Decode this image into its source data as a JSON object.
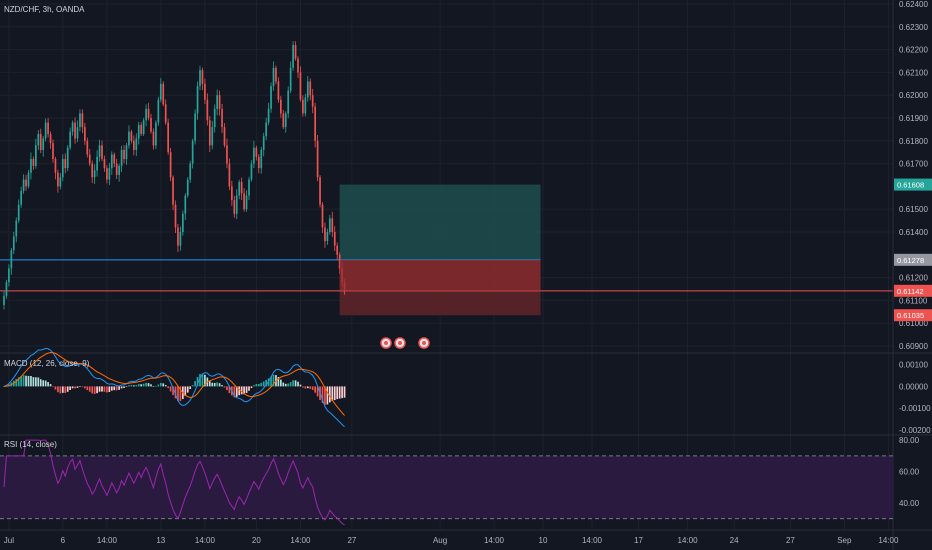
{
  "colors": {
    "background": "#131722",
    "grid": "#1e222d",
    "text": "#b2b5be",
    "up": "#26a69a",
    "down": "#ef5350",
    "macd": "#2196f3",
    "signal": "#ff6d00",
    "rsi": "#9c27b0",
    "rsi_band": "#2a1a3f",
    "target_zone": "#1e4d4d",
    "stop_zone": "#5c2328",
    "entry_line": "#2196f3",
    "current_line": "#ef5350"
  },
  "chart_data": [
    {
      "type": "candlestick",
      "title": "NZD/CHF, 3h, OANDA",
      "y_ticks": [
        "0.62400",
        "0.62300",
        "0.62200",
        "0.62100",
        "0.62000",
        "0.61900",
        "0.61800",
        "0.61700",
        "0.61500",
        "0.61400",
        "0.61200",
        "0.61100",
        "0.61000",
        "0.60900"
      ],
      "x_ticks": [
        {
          "label": "Jul",
          "bar": 2
        },
        {
          "label": "6",
          "bar": 24
        },
        {
          "label": "14:00",
          "bar": 42
        },
        {
          "label": "13",
          "bar": 64
        },
        {
          "label": "14:00",
          "bar": 82
        },
        {
          "label": "20",
          "bar": 103
        },
        {
          "label": "14:00",
          "bar": 121
        },
        {
          "label": "27",
          "bar": 142
        },
        {
          "label": "Aug",
          "bar": 178
        },
        {
          "label": "14:00",
          "bar": 200
        },
        {
          "label": "10",
          "bar": 220
        },
        {
          "label": "14:00",
          "bar": 240
        },
        {
          "label": "17",
          "bar": 259
        },
        {
          "label": "14:00",
          "bar": 279
        },
        {
          "label": "24",
          "bar": 298
        },
        {
          "label": "27",
          "bar": 321
        },
        {
          "label": "14:00",
          "bar": 361
        },
        {
          "label": "Sep",
          "bar": 343
        }
      ],
      "price_labels": [
        {
          "text": "0.61608",
          "value": 0.61608,
          "color": "#26a69a"
        },
        {
          "text": "0.61278",
          "value": 0.61278,
          "color": "#9598a1"
        },
        {
          "text": "0.61142",
          "value": 0.61142,
          "color": "#ef5350"
        },
        {
          "text": "0.61035",
          "value": 0.61035,
          "color": "#ef5350"
        }
      ],
      "position": {
        "entry": 0.61278,
        "target": 0.61608,
        "stop": 0.61035,
        "current": 0.61142,
        "start_bar": 137,
        "end_bar": 219
      },
      "close": [
        0.6112,
        0.6118,
        0.6124,
        0.6132,
        0.6138,
        0.6145,
        0.6152,
        0.6158,
        0.6163,
        0.616,
        0.6166,
        0.6172,
        0.6169,
        0.6178,
        0.6183,
        0.6176,
        0.6181,
        0.6188,
        0.6183,
        0.6179,
        0.6172,
        0.6166,
        0.616,
        0.6164,
        0.6172,
        0.6168,
        0.6177,
        0.6184,
        0.6188,
        0.6181,
        0.6186,
        0.6192,
        0.6186,
        0.618,
        0.6174,
        0.617,
        0.6164,
        0.6167,
        0.6173,
        0.6178,
        0.6172,
        0.6168,
        0.6163,
        0.6168,
        0.6174,
        0.617,
        0.6165,
        0.6169,
        0.6176,
        0.6172,
        0.6178,
        0.6184,
        0.618,
        0.6176,
        0.6181,
        0.6187,
        0.6183,
        0.6189,
        0.6194,
        0.619,
        0.6184,
        0.6178,
        0.6188,
        0.6198,
        0.6205,
        0.6196,
        0.6188,
        0.6175,
        0.6164,
        0.6152,
        0.6142,
        0.6134,
        0.614,
        0.6148,
        0.6156,
        0.6163,
        0.617,
        0.618,
        0.6192,
        0.6204,
        0.6211,
        0.6205,
        0.6198,
        0.6189,
        0.6178,
        0.6186,
        0.6194,
        0.62,
        0.6194,
        0.6186,
        0.6178,
        0.617,
        0.616,
        0.6154,
        0.6148,
        0.6156,
        0.6162,
        0.6157,
        0.615,
        0.6156,
        0.6163,
        0.617,
        0.6177,
        0.6173,
        0.6168,
        0.6176,
        0.6182,
        0.6188,
        0.6194,
        0.6204,
        0.6212,
        0.6206,
        0.6198,
        0.6192,
        0.6186,
        0.6192,
        0.6202,
        0.6212,
        0.6222,
        0.6216,
        0.621,
        0.6198,
        0.6192,
        0.6199,
        0.6206,
        0.62,
        0.6195,
        0.618,
        0.6164,
        0.6152,
        0.6142,
        0.6136,
        0.614,
        0.6146,
        0.614,
        0.6134,
        0.613,
        0.6124,
        0.6118,
        0.6114
      ],
      "rsi_ticks": [
        "80.00",
        "60.00",
        "40.00"
      ],
      "rsi_bands": [
        70,
        30
      ]
    },
    {
      "type": "bar",
      "title": "MACD (12, 26, close, 9)",
      "y_ticks": [
        "0.00100",
        "0.00000",
        "-0.00100",
        "-0.00200"
      ]
    },
    {
      "type": "line",
      "title": "RSI (14, close)",
      "y_ticks": [
        "80.00",
        "60.00",
        "40.00"
      ],
      "levels": [
        70,
        30
      ]
    }
  ],
  "events": {
    "icons": [
      "event-flag-icon",
      "event-flag-icon",
      "event-flag-icon"
    ]
  }
}
